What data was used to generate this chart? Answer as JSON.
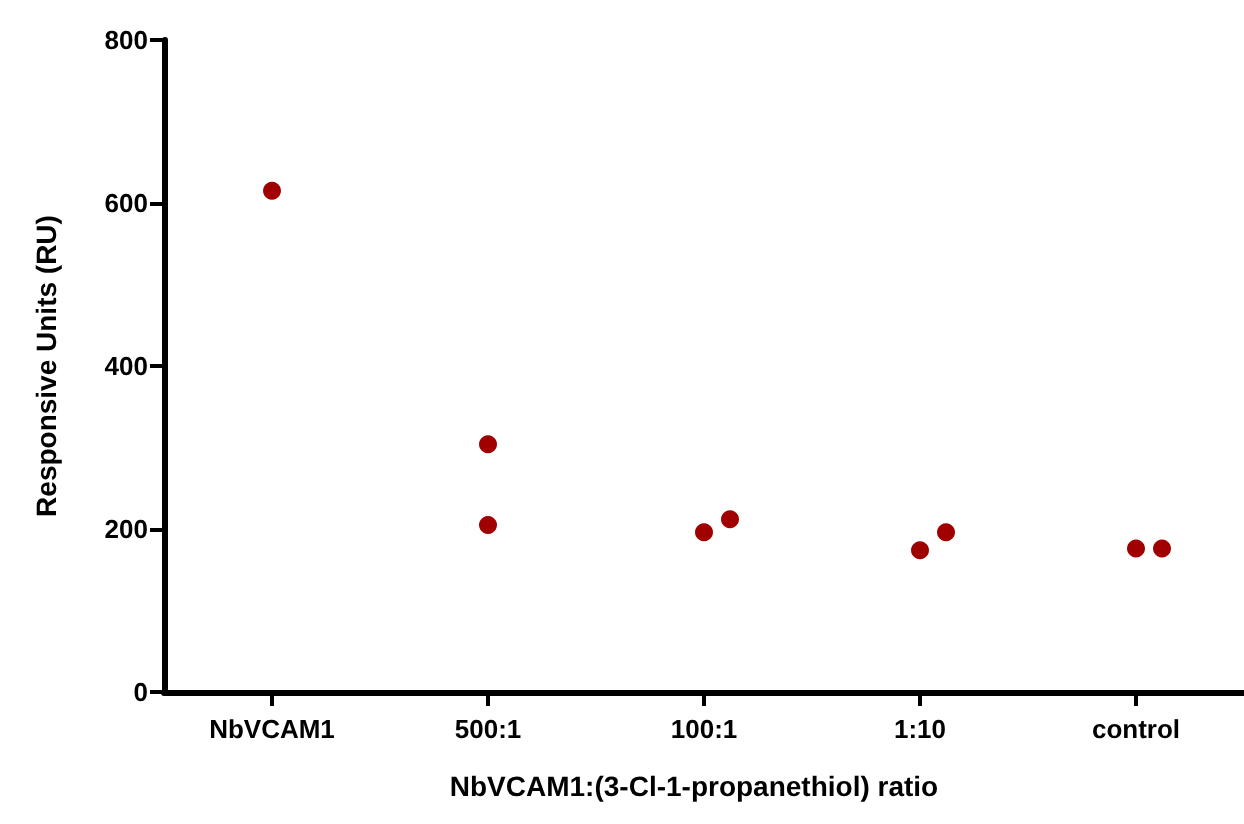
{
  "chart_data": {
    "type": "scatter",
    "xlabel": "NbVCAM1:(3-Cl-1-propanethiol) ratio",
    "ylabel": "Responsive Units (RU)",
    "categories": [
      "NbVCAM1",
      "500:1",
      "100:1",
      "1:10",
      "control"
    ],
    "series": [
      {
        "color": "#a00000",
        "x": [
          "NbVCAM1",
          "500:1",
          "500:1",
          "100:1",
          "100:1",
          "1:10",
          "1:10",
          "control",
          "control"
        ],
        "values": [
          615,
          304,
          205,
          196,
          212,
          174,
          196,
          176,
          176
        ]
      }
    ],
    "ylim": [
      0,
      800
    ],
    "yticks": [
      0,
      200,
      400,
      600,
      800
    ],
    "marker": "circle"
  }
}
